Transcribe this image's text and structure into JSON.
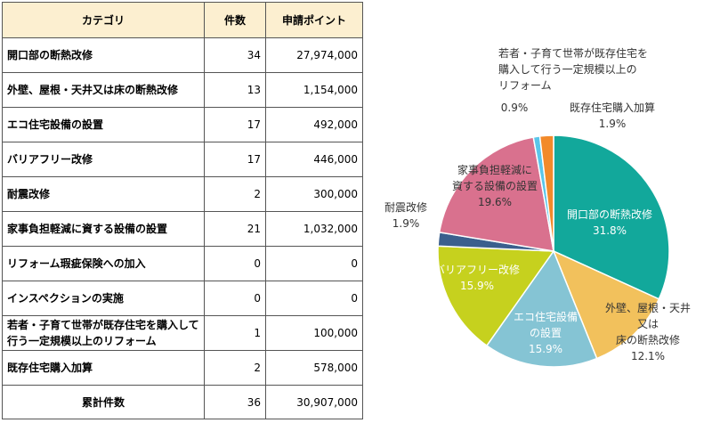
{
  "table": {
    "headers": {
      "category": "カテゴリ",
      "count": "件数",
      "points": "申請ポイント"
    },
    "rows": [
      {
        "category": "開口部の断熱改修",
        "count": "34",
        "points": "27,974,000"
      },
      {
        "category": "外壁、屋根・天井又は床の断熱改修",
        "count": "13",
        "points": "1,154,000"
      },
      {
        "category": "エコ住宅設備の設置",
        "count": "17",
        "points": "492,000"
      },
      {
        "category": "バリアフリー改修",
        "count": "17",
        "points": "446,000"
      },
      {
        "category": "耐震改修",
        "count": "2",
        "points": "300,000"
      },
      {
        "category": "家事負担軽減に資する設備の設置",
        "count": "21",
        "points": "1,032,000"
      },
      {
        "category": "リフォーム瑕疵保険への加入",
        "count": "0",
        "points": "0"
      },
      {
        "category": "インスペクションの実施",
        "count": "0",
        "points": "0"
      },
      {
        "category": "若者・子育て世帯が既存住宅を購入して行う一定規模以上のリフォーム",
        "count": "1",
        "points": "100,000"
      },
      {
        "category": "既存住宅購入加算",
        "count": "2",
        "points": "578,000"
      }
    ],
    "total": {
      "label": "累計件数",
      "count": "36",
      "points": "30,907,000"
    }
  },
  "chart_data": {
    "type": "pie",
    "start": "12 o'clock",
    "direction": "clockwise",
    "slices": [
      {
        "label_lines": [
          "開口部の断熱改修"
        ],
        "pct": "31.8%",
        "value": 31.8,
        "color": "#12a89b"
      },
      {
        "label_lines": [
          "外壁、屋根・天井",
          "又は",
          "床の断熱改修"
        ],
        "pct": "12.1%",
        "value": 12.1,
        "color": "#f2c15c"
      },
      {
        "label_lines": [
          "エコ住宅設備",
          "の設置"
        ],
        "pct": "15.9%",
        "value": 15.9,
        "color": "#85c4d4"
      },
      {
        "label_lines": [
          "バリアフリー改修"
        ],
        "pct": "15.9%",
        "value": 15.9,
        "color": "#c6d11e"
      },
      {
        "label_lines": [
          "耐震改修"
        ],
        "pct": "1.9%",
        "value": 1.9,
        "color": "#3b5f8d"
      },
      {
        "label_lines": [
          "家事負担軽減に",
          "資する設備の設置"
        ],
        "pct": "19.6%",
        "value": 19.6,
        "color": "#d9718e"
      },
      {
        "label_lines": [
          "若者・子育て世帯が既存住宅を",
          "購入して行う一定規模以上の",
          "リフォーム"
        ],
        "pct": "0.9%",
        "value": 0.9,
        "color": "#5ac6ea"
      },
      {
        "label_lines": [
          "既存住宅購入加算"
        ],
        "pct": "1.9%",
        "value": 1.9,
        "color": "#f28a2a"
      }
    ]
  }
}
